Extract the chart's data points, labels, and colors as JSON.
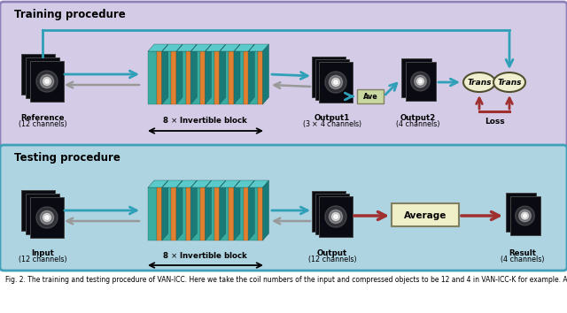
{
  "training_bg": "#d4cce6",
  "testing_bg": "#aed4e2",
  "training_border": "#9080b8",
  "testing_border": "#40a0b8",
  "training_label": "Training procedure",
  "testing_label": "Testing procedure",
  "teal_color": "#3aada0",
  "teal_top": "#5acaca",
  "orange_color": "#e08030",
  "arrow_teal": "#30a0b8",
  "arrow_red": "#a03030",
  "gray_arrow": "#999999",
  "ave_box_color": "#c8d8a0",
  "ave_border": "#808060",
  "trans_fill": "#f0f0d0",
  "trans_border": "#505030",
  "average_box_fill": "#f0f0c8",
  "average_box_border": "#808060",
  "caption": "Fig. 2. The training and testing procedure of VAN-ICC. Here we take the coil numbers of the input and compressed objects to be 12 and 4 in VAN-ICC-K for example. Average (Ave) denotes the average operator conducted across the channel directions."
}
